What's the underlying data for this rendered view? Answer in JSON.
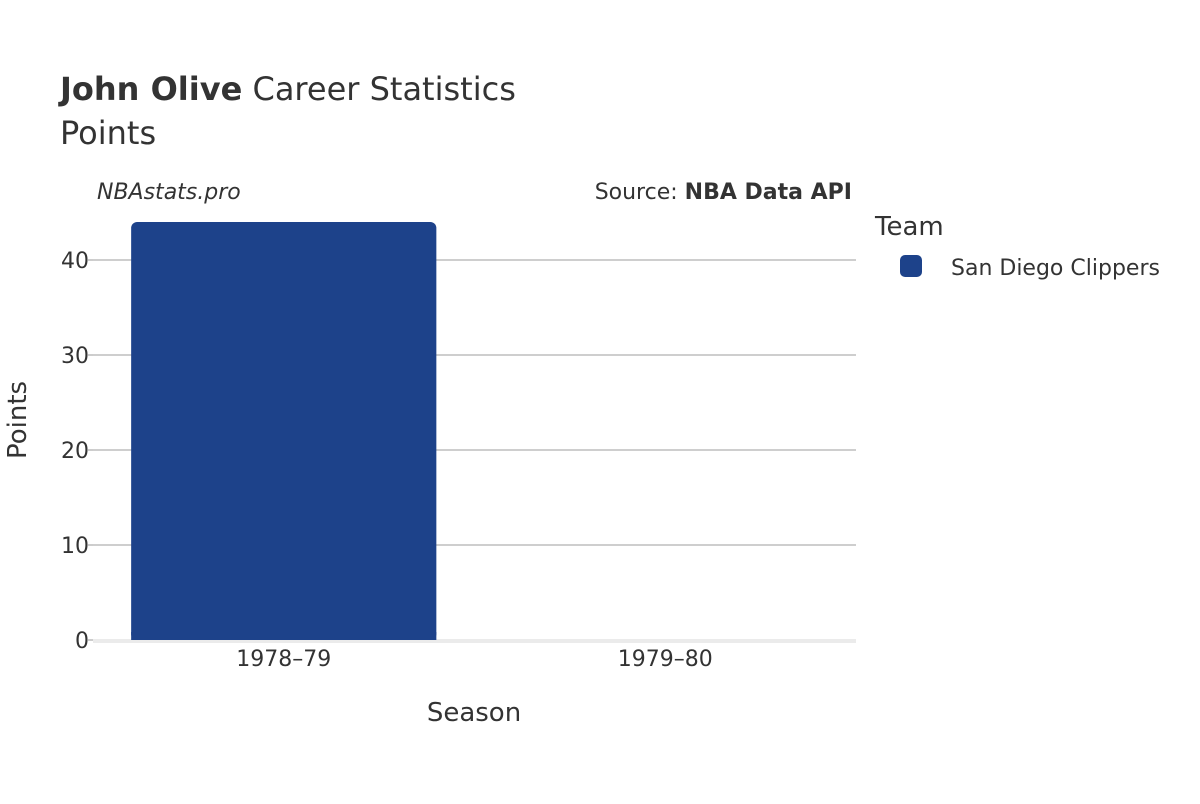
{
  "title": {
    "bold": "John Olive",
    "rest": " Career Statistics"
  },
  "subtitle": "Points",
  "watermark": "NBAstats.pro",
  "source": {
    "prefix": "Source: ",
    "name": "NBA Data API"
  },
  "legend": {
    "title": "Team",
    "items": [
      {
        "label": "San Diego Clippers",
        "color": "#1d428a"
      }
    ]
  },
  "chart_data": {
    "type": "bar",
    "categories": [
      "1978–79",
      "1979–80"
    ],
    "series": [
      {
        "name": "San Diego Clippers",
        "values": [
          44,
          0
        ],
        "color": "#1d428a"
      }
    ],
    "xlabel": "Season",
    "ylabel": "Points",
    "ylim": [
      0,
      44
    ],
    "yticks": [
      0,
      10,
      20,
      30,
      40
    ],
    "grid": true,
    "legend_position": "right"
  }
}
